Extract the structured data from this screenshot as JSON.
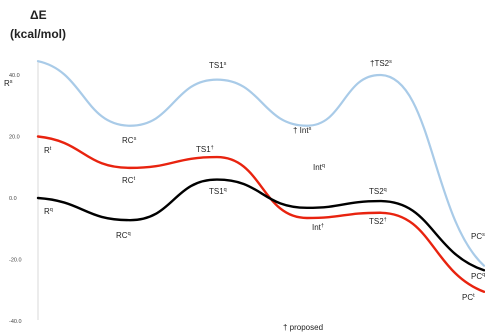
{
  "chart_data": {
    "type": "line",
    "title": "",
    "ylabel": "ΔE",
    "ylabel_unit": "(kcal/mol)",
    "xlabel": "",
    "ylim": [
      -40,
      40
    ],
    "yticks": [
      "40.0",
      "20.0",
      "0.0",
      "-20.0",
      "-40.0"
    ],
    "ytick_values": [
      40,
      20,
      0,
      -20,
      -40
    ],
    "grid": false,
    "legend": "none",
    "footnote": "† proposed",
    "x": [
      "R",
      "RC",
      "TS1",
      "Int",
      "TS2",
      "PC"
    ],
    "series": [
      {
        "key": "s",
        "color": "#a9cbe8",
        "values": [
          44.5,
          23.5,
          38.5,
          23.5,
          40.0,
          -22.0
        ],
        "labels": [
          {
            "text": "R",
            "sup": "s"
          },
          {
            "text": "RC",
            "sup": "s"
          },
          {
            "text": "TS1",
            "sup": "s"
          },
          {
            "text": "† Int",
            "sup": "s"
          },
          {
            "text": "†TS2",
            "sup": "s"
          },
          {
            "text": "PC",
            "sup": "s"
          }
        ]
      },
      {
        "key": "t",
        "color": "#e8230f",
        "values": [
          20.0,
          9.8,
          13.3,
          -6.5,
          -4.8,
          -30.5
        ],
        "labels": [
          {
            "text": "R",
            "sup": "t"
          },
          {
            "text": "RC",
            "sup": "t"
          },
          {
            "text": "TS1",
            "sup": "†"
          },
          {
            "text": "Int",
            "sup": "†"
          },
          {
            "text": "TS2",
            "sup": "†"
          },
          {
            "text": "PC",
            "sup": "t"
          }
        ]
      },
      {
        "key": "q",
        "color": "#000000",
        "values": [
          0.0,
          -7.2,
          6.0,
          -3.2,
          -1.0,
          -23.5
        ],
        "labels": [
          {
            "text": "R",
            "sup": "q"
          },
          {
            "text": "RC",
            "sup": "q"
          },
          {
            "text": "TS1",
            "sup": "q"
          },
          {
            "text": "Int",
            "sup": "q"
          },
          {
            "text": "TS2",
            "sup": "q"
          },
          {
            "text": "PC",
            "sup": "q"
          }
        ]
      }
    ]
  }
}
